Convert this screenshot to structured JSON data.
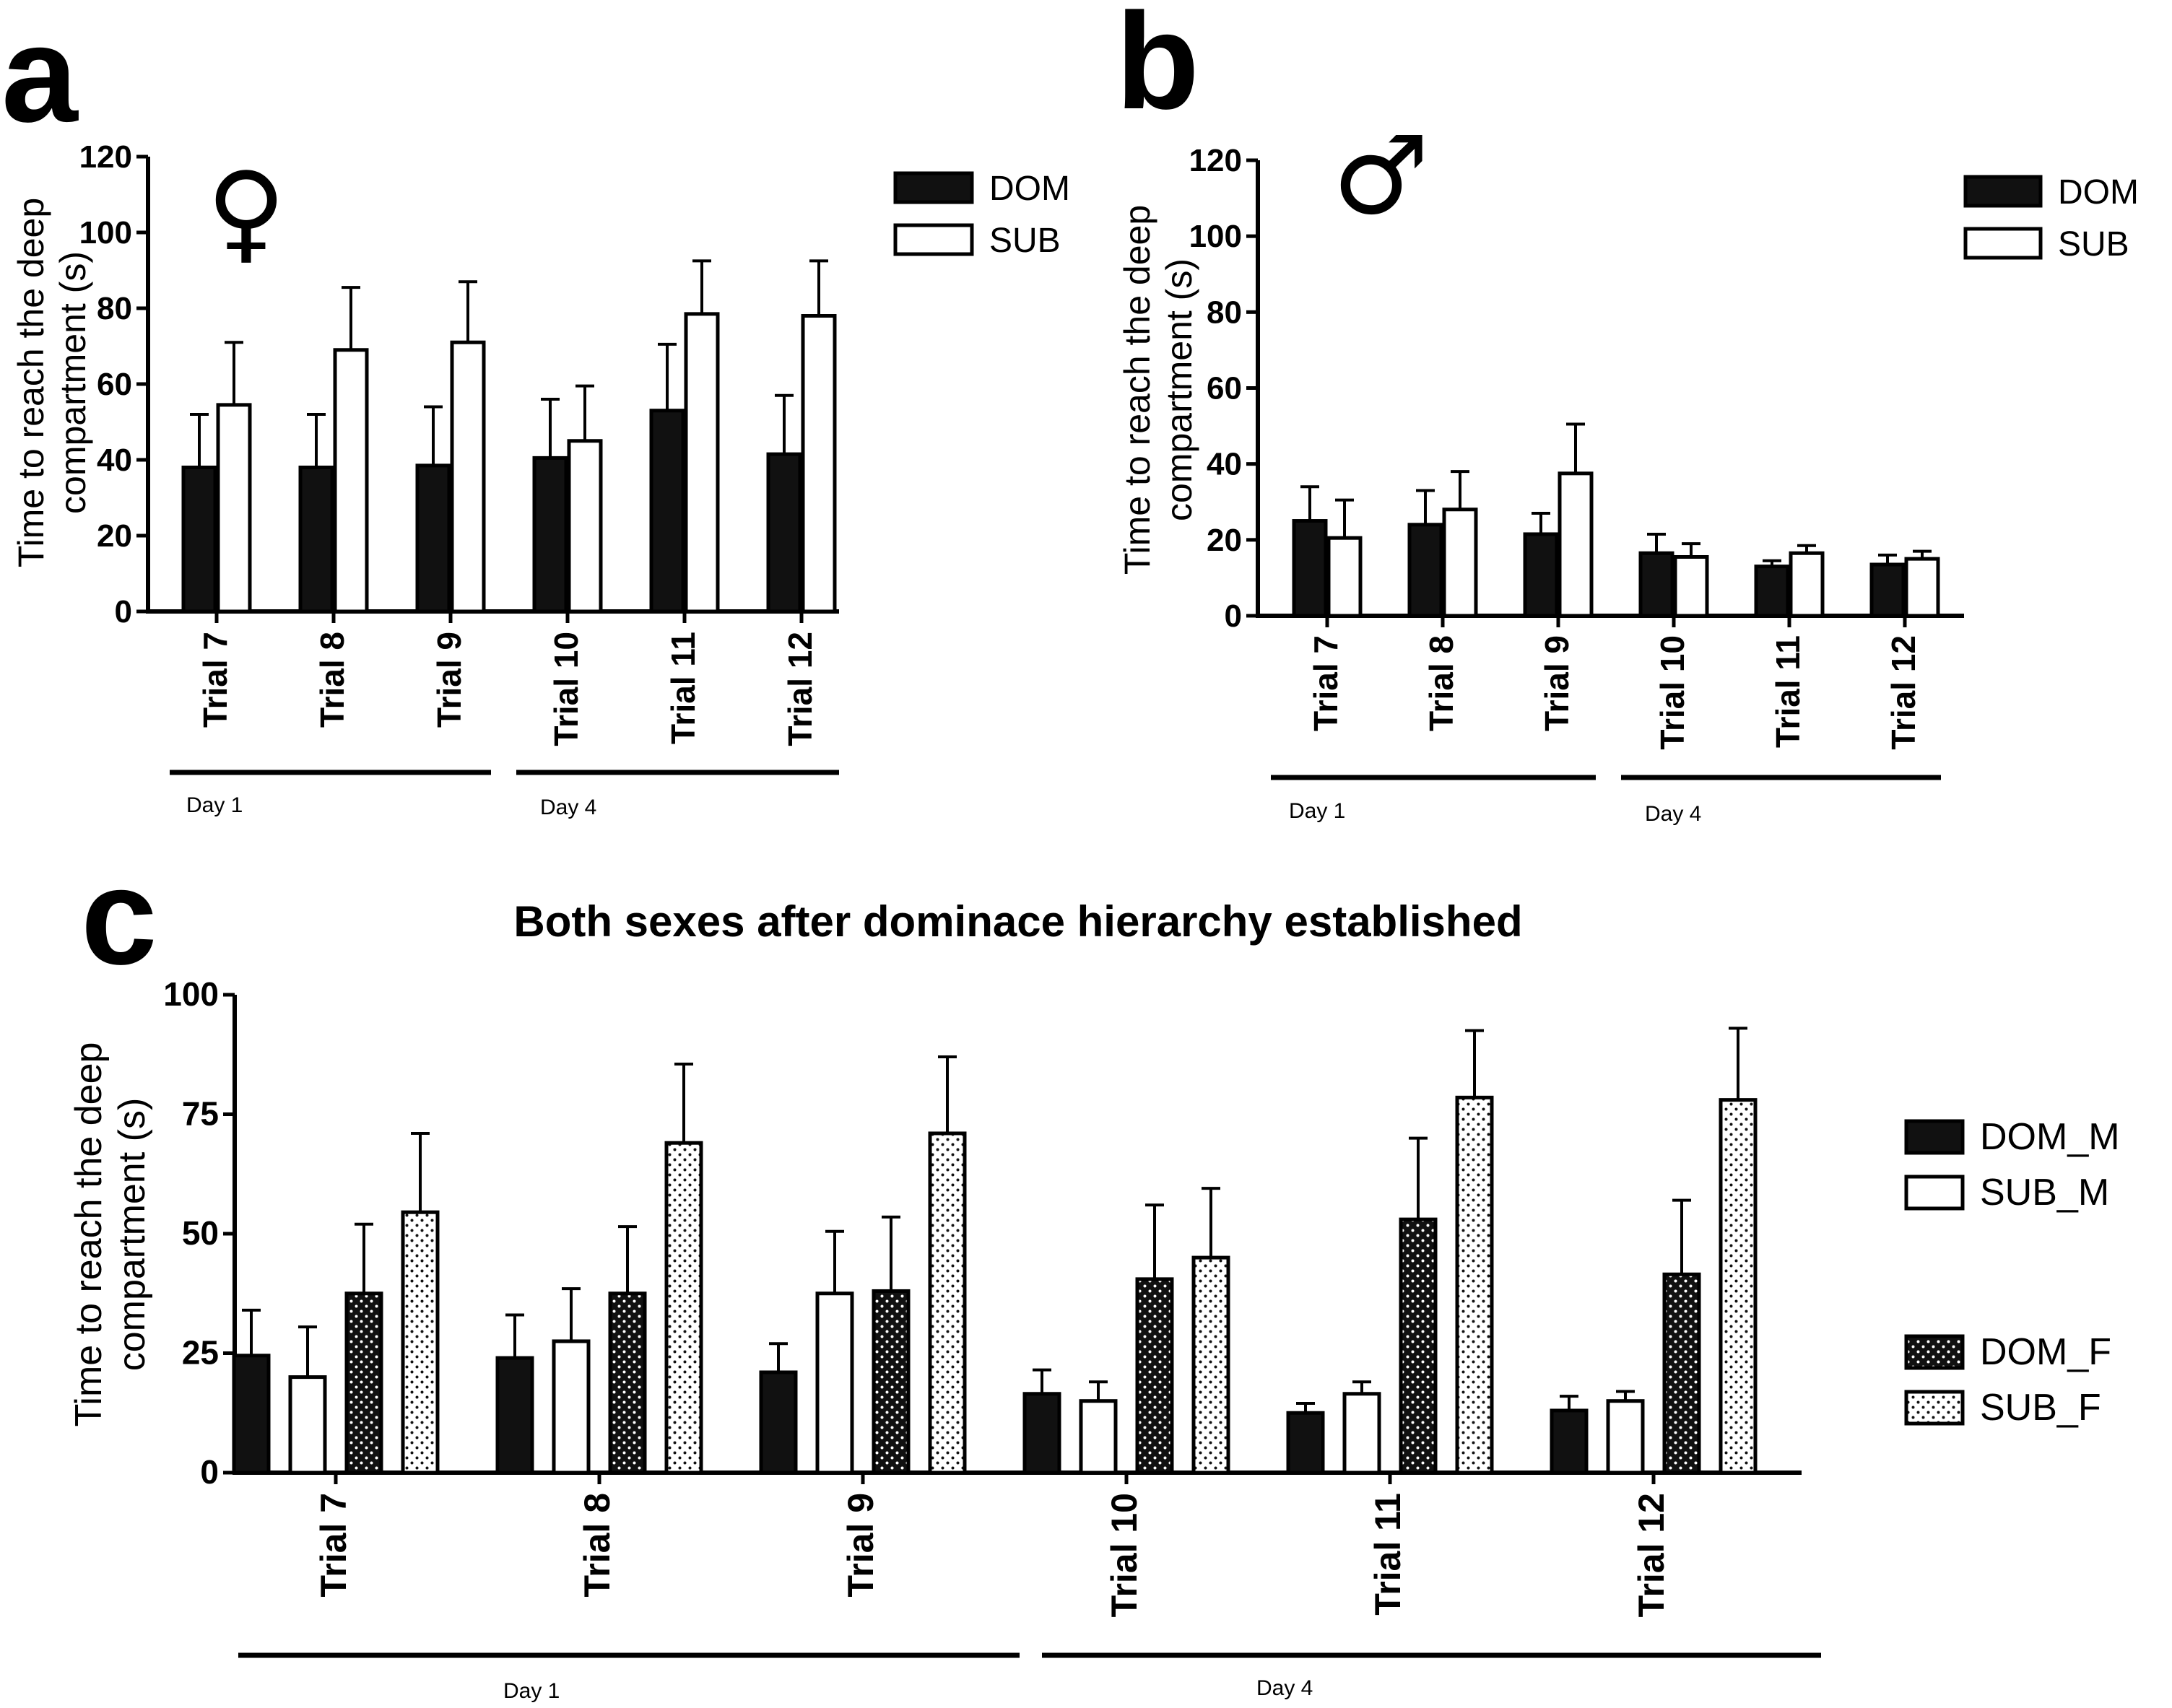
{
  "panels": {
    "a": {
      "letter": "a",
      "symbol": "♀"
    },
    "b": {
      "letter": "b",
      "symbol": "♂"
    },
    "c": {
      "letter": "c"
    }
  },
  "chart_data": [
    {
      "id": "a",
      "type": "bar",
      "title": "",
      "xlabel": "",
      "ylabel": "Time to reach the deep compartment (s)",
      "ylabel_lines": [
        "Time to reach the deep",
        "compartment (s)"
      ],
      "ylim": [
        0,
        120
      ],
      "yticks": [
        0,
        20,
        40,
        60,
        80,
        100,
        120
      ],
      "categories": [
        "Trial 7",
        "Trial 8",
        "Trial 9",
        "Trial 10",
        "Trial 11",
        "Trial 12"
      ],
      "groups": [
        {
          "label": "Day 1",
          "categories": [
            "Trial 7",
            "Trial 8",
            "Trial 9"
          ]
        },
        {
          "label": "Day 4",
          "categories": [
            "Trial 10",
            "Trial 11",
            "Trial 12"
          ]
        }
      ],
      "legend_position": "top-right",
      "series": [
        {
          "name": "DOM",
          "fill": "#111111",
          "pattern": "solid",
          "values": [
            38,
            38,
            38.5,
            40.5,
            53,
            41.5
          ],
          "errors": [
            14,
            14,
            15.5,
            15.5,
            17.5,
            15.5
          ]
        },
        {
          "name": "SUB",
          "fill": "#ffffff",
          "pattern": "open",
          "values": [
            54.5,
            69,
            71,
            45,
            78.5,
            78
          ],
          "errors": [
            16.5,
            16.5,
            16,
            14.5,
            14,
            14.5
          ]
        }
      ]
    },
    {
      "id": "b",
      "type": "bar",
      "title": "",
      "xlabel": "",
      "ylabel": "Time to reach the deep compartment (s)",
      "ylabel_lines": [
        "Time to reach the deep",
        "compartment (s)"
      ],
      "ylim": [
        0,
        120
      ],
      "yticks": [
        0,
        20,
        40,
        60,
        80,
        100,
        120
      ],
      "categories": [
        "Trial 7",
        "Trial 8",
        "Trial 9",
        "Trial 10",
        "Trial 11",
        "Trial 12"
      ],
      "groups": [
        {
          "label": "Day 1",
          "categories": [
            "Trial 7",
            "Trial 8",
            "Trial 9"
          ]
        },
        {
          "label": "Day 4",
          "categories": [
            "Trial 10",
            "Trial 11",
            "Trial 12"
          ]
        }
      ],
      "legend_position": "top-right",
      "series": [
        {
          "name": "DOM",
          "fill": "#111111",
          "pattern": "solid",
          "values": [
            25,
            24,
            21.5,
            16.5,
            13,
            13.5
          ],
          "errors": [
            9,
            9,
            5.5,
            5,
            1.5,
            2.5
          ]
        },
        {
          "name": "SUB",
          "fill": "#ffffff",
          "pattern": "open",
          "values": [
            20.5,
            28,
            37.5,
            15.5,
            16.5,
            15
          ],
          "errors": [
            10,
            10,
            13,
            3.5,
            2,
            2
          ]
        }
      ]
    },
    {
      "id": "c",
      "type": "bar",
      "title": "Both sexes after dominace hierarchy established",
      "xlabel": "",
      "ylabel": "Time to reach the deep compartment (s)",
      "ylabel_lines": [
        "Time to reach the deep",
        "compartment (s)"
      ],
      "ylim": [
        0,
        100
      ],
      "yticks": [
        0,
        25,
        50,
        75,
        100
      ],
      "categories": [
        "Trial 7",
        "Trial 8",
        "Trial 9",
        "Trial 10",
        "Trial 11",
        "Trial 12"
      ],
      "groups": [
        {
          "label": "Day 1",
          "categories": [
            "Trial 7",
            "Trial 8",
            "Trial 9"
          ]
        },
        {
          "label": "Day 4",
          "categories": [
            "Trial 10",
            "Trial 11",
            "Trial 12"
          ]
        }
      ],
      "legend_position": "right",
      "series": [
        {
          "name": "DOM_M",
          "fill": "#111111",
          "pattern": "solid",
          "values": [
            24.5,
            24,
            21,
            16.5,
            12.5,
            13
          ],
          "errors": [
            9.5,
            9,
            6,
            5,
            2,
            3
          ]
        },
        {
          "name": "SUB_M",
          "fill": "#ffffff",
          "pattern": "open",
          "values": [
            20,
            27.5,
            37.5,
            15,
            16.5,
            15
          ],
          "errors": [
            10.5,
            11,
            13,
            4,
            2.5,
            2
          ]
        },
        {
          "name": "DOM_F",
          "fill": "#111111",
          "pattern": "dots-light",
          "values": [
            37.5,
            37.5,
            38,
            40.5,
            53,
            41.5
          ],
          "errors": [
            14.5,
            14,
            15.5,
            15.5,
            17,
            15.5
          ]
        },
        {
          "name": "SUB_F",
          "fill": "#ffffff",
          "pattern": "dots-dark",
          "values": [
            54.5,
            69,
            71,
            45,
            78.5,
            78
          ],
          "errors": [
            16.5,
            16.5,
            16,
            14.5,
            14,
            15
          ]
        }
      ]
    }
  ]
}
